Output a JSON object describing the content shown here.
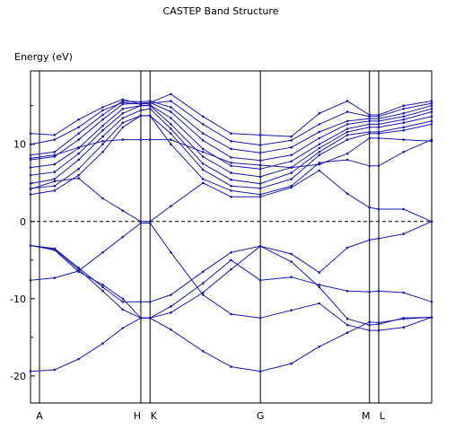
{
  "chart_data": {
    "type": "line",
    "title": "CASTEP Band Structure",
    "ylabel": "Energy (eV)",
    "xlabel": "",
    "ylim": [
      -23.5,
      19.5
    ],
    "yticks": [
      -20,
      -10,
      0,
      10
    ],
    "fermi_level": 0,
    "grid": false,
    "legend": "none",
    "colors": {
      "bands": "#1a1aa8",
      "axis": "#000000",
      "fermi": "#000000"
    },
    "kpoints": [
      {
        "label": "A",
        "x": 0.0
      },
      {
        "label": "H",
        "x": 0.275
      },
      {
        "label": "K",
        "x": 0.298
      },
      {
        "label": "G",
        "x": 0.573
      },
      {
        "label": "M",
        "x": 0.845
      },
      {
        "label": "L",
        "x": 0.868
      }
    ],
    "xrange": [
      0,
      1.0
    ],
    "series": [
      {
        "points": [
          [
            0.0,
            -19.4
          ],
          [
            0.06,
            -19.2
          ],
          [
            0.12,
            -17.8
          ],
          [
            0.18,
            -15.8
          ],
          [
            0.23,
            -13.8
          ],
          [
            0.275,
            -12.5
          ],
          [
            0.298,
            -12.5
          ],
          [
            0.35,
            -14.0
          ],
          [
            0.43,
            -16.8
          ],
          [
            0.5,
            -18.8
          ],
          [
            0.573,
            -19.4
          ],
          [
            0.65,
            -18.4
          ],
          [
            0.72,
            -16.2
          ],
          [
            0.79,
            -14.4
          ],
          [
            0.845,
            -13.0
          ],
          [
            0.868,
            -13.1
          ],
          [
            0.93,
            -12.6
          ],
          [
            1.0,
            -12.4
          ]
        ]
      },
      {
        "points": [
          [
            0.0,
            -7.6
          ],
          [
            0.06,
            -7.3
          ],
          [
            0.12,
            -6.4
          ],
          [
            0.18,
            -4.0
          ],
          [
            0.23,
            -2.0
          ],
          [
            0.275,
            -0.2
          ],
          [
            0.298,
            -0.2
          ],
          [
            0.35,
            -4.0
          ],
          [
            0.43,
            -9.5
          ],
          [
            0.5,
            -12.0
          ],
          [
            0.573,
            -12.5
          ],
          [
            0.65,
            -11.5
          ],
          [
            0.72,
            -10.6
          ],
          [
            0.79,
            -13.4
          ],
          [
            0.845,
            -14.1
          ],
          [
            0.868,
            -14.1
          ],
          [
            0.93,
            -13.7
          ],
          [
            1.0,
            -12.4
          ]
        ]
      },
      {
        "points": [
          [
            0.0,
            -3.1
          ],
          [
            0.06,
            -3.5
          ],
          [
            0.12,
            -6.0
          ],
          [
            0.18,
            -8.5
          ],
          [
            0.23,
            -10.4
          ],
          [
            0.275,
            -10.4
          ],
          [
            0.298,
            -10.4
          ],
          [
            0.35,
            -9.5
          ],
          [
            0.43,
            -6.5
          ],
          [
            0.5,
            -4.0
          ],
          [
            0.573,
            -3.2
          ],
          [
            0.65,
            -5.2
          ],
          [
            0.72,
            -8.5
          ],
          [
            0.79,
            -12.6
          ],
          [
            0.845,
            -13.4
          ],
          [
            0.868,
            -13.3
          ],
          [
            0.93,
            -12.5
          ],
          [
            1.0,
            -12.4
          ]
        ]
      },
      {
        "points": [
          [
            0.0,
            -3.1
          ],
          [
            0.06,
            -3.6
          ],
          [
            0.12,
            -6.2
          ],
          [
            0.18,
            -9.0
          ],
          [
            0.23,
            -11.4
          ],
          [
            0.275,
            -12.5
          ],
          [
            0.298,
            -12.5
          ],
          [
            0.35,
            -11.8
          ],
          [
            0.43,
            -9.2
          ],
          [
            0.5,
            -6.2
          ],
          [
            0.573,
            -3.2
          ],
          [
            0.65,
            -4.2
          ],
          [
            0.72,
            -6.6
          ],
          [
            0.79,
            -3.4
          ],
          [
            0.845,
            -2.4
          ],
          [
            0.868,
            -2.2
          ],
          [
            0.93,
            -1.6
          ],
          [
            1.0,
            0.0
          ]
        ]
      },
      {
        "points": [
          [
            0.0,
            -3.1
          ],
          [
            0.06,
            -3.7
          ],
          [
            0.12,
            -6.5
          ],
          [
            0.18,
            -8.2
          ],
          [
            0.23,
            -10.0
          ],
          [
            0.275,
            -12.5
          ],
          [
            0.298,
            -12.5
          ],
          [
            0.35,
            -11.0
          ],
          [
            0.43,
            -8.0
          ],
          [
            0.5,
            -5.0
          ],
          [
            0.573,
            -7.6
          ],
          [
            0.65,
            -7.2
          ],
          [
            0.72,
            -8.2
          ],
          [
            0.79,
            -9.0
          ],
          [
            0.845,
            -9.1
          ],
          [
            0.868,
            -9.0
          ],
          [
            0.93,
            -9.2
          ],
          [
            1.0,
            -10.4
          ]
        ]
      },
      {
        "points": [
          [
            0.0,
            4.2
          ],
          [
            0.06,
            5.2
          ],
          [
            0.12,
            5.6
          ],
          [
            0.18,
            3.0
          ],
          [
            0.23,
            1.4
          ],
          [
            0.275,
            0.0
          ],
          [
            0.298,
            0.0
          ],
          [
            0.35,
            2.0
          ],
          [
            0.43,
            5.0
          ],
          [
            0.5,
            3.2
          ],
          [
            0.573,
            3.2
          ],
          [
            0.65,
            4.4
          ],
          [
            0.72,
            6.6
          ],
          [
            0.79,
            3.6
          ],
          [
            0.845,
            1.8
          ],
          [
            0.868,
            1.6
          ],
          [
            0.93,
            1.6
          ],
          [
            1.0,
            0.0
          ]
        ]
      },
      {
        "points": [
          [
            0.0,
            3.5
          ],
          [
            0.06,
            4.0
          ],
          [
            0.12,
            6.0
          ],
          [
            0.18,
            9.0
          ],
          [
            0.23,
            12.2
          ],
          [
            0.275,
            13.7
          ],
          [
            0.298,
            13.7
          ],
          [
            0.35,
            10.0
          ],
          [
            0.43,
            5.5
          ],
          [
            0.5,
            4.0
          ],
          [
            0.573,
            3.5
          ],
          [
            0.65,
            4.6
          ],
          [
            0.72,
            7.6
          ],
          [
            0.79,
            8.0
          ],
          [
            0.845,
            7.2
          ],
          [
            0.868,
            7.2
          ],
          [
            0.93,
            9.0
          ],
          [
            1.0,
            10.6
          ]
        ]
      },
      {
        "points": [
          [
            0.0,
            4.3
          ],
          [
            0.06,
            4.6
          ],
          [
            0.12,
            6.8
          ],
          [
            0.18,
            10.0
          ],
          [
            0.23,
            12.8
          ],
          [
            0.275,
            13.7
          ],
          [
            0.298,
            13.7
          ],
          [
            0.35,
            11.4
          ],
          [
            0.43,
            6.7
          ],
          [
            0.5,
            4.6
          ],
          [
            0.573,
            4.3
          ],
          [
            0.65,
            5.5
          ],
          [
            0.72,
            8.6
          ],
          [
            0.79,
            10.6
          ],
          [
            0.845,
            11.4
          ],
          [
            0.868,
            11.4
          ],
          [
            0.93,
            11.8
          ],
          [
            1.0,
            12.6
          ]
        ]
      },
      {
        "points": [
          [
            0.0,
            4.9
          ],
          [
            0.06,
            5.5
          ],
          [
            0.12,
            8.0
          ],
          [
            0.18,
            11.0
          ],
          [
            0.23,
            13.4
          ],
          [
            0.275,
            14.4
          ],
          [
            0.298,
            14.6
          ],
          [
            0.35,
            12.0
          ],
          [
            0.43,
            7.5
          ],
          [
            0.5,
            5.4
          ],
          [
            0.573,
            4.9
          ],
          [
            0.65,
            6.3
          ],
          [
            0.72,
            9.0
          ],
          [
            0.79,
            11.2
          ],
          [
            0.845,
            11.6
          ],
          [
            0.868,
            11.6
          ],
          [
            0.93,
            12.2
          ],
          [
            1.0,
            13.0
          ]
        ]
      },
      {
        "points": [
          [
            0.0,
            6.0
          ],
          [
            0.06,
            6.4
          ],
          [
            0.12,
            8.8
          ],
          [
            0.18,
            11.8
          ],
          [
            0.23,
            14.0
          ],
          [
            0.275,
            15.0
          ],
          [
            0.298,
            15.0
          ],
          [
            0.35,
            12.6
          ],
          [
            0.43,
            8.4
          ],
          [
            0.5,
            6.3
          ],
          [
            0.573,
            5.8
          ],
          [
            0.65,
            7.0
          ],
          [
            0.72,
            9.5
          ],
          [
            0.79,
            11.6
          ],
          [
            0.845,
            12.2
          ],
          [
            0.868,
            12.2
          ],
          [
            0.93,
            12.8
          ],
          [
            1.0,
            13.6
          ]
        ]
      },
      {
        "points": [
          [
            0.0,
            7.0
          ],
          [
            0.06,
            7.4
          ],
          [
            0.12,
            9.5
          ],
          [
            0.18,
            12.4
          ],
          [
            0.23,
            14.6
          ],
          [
            0.275,
            15.0
          ],
          [
            0.298,
            15.1
          ],
          [
            0.35,
            13.4
          ],
          [
            0.43,
            9.4
          ],
          [
            0.5,
            7.2
          ],
          [
            0.573,
            6.8
          ],
          [
            0.65,
            7.8
          ],
          [
            0.72,
            10.0
          ],
          [
            0.79,
            12.0
          ],
          [
            0.845,
            12.6
          ],
          [
            0.868,
            12.6
          ],
          [
            0.93,
            13.2
          ],
          [
            1.0,
            14.2
          ]
        ]
      },
      {
        "points": [
          [
            0.0,
            8.0
          ],
          [
            0.06,
            8.4
          ],
          [
            0.12,
            10.6
          ],
          [
            0.18,
            13.2
          ],
          [
            0.23,
            15.2
          ],
          [
            0.275,
            15.3
          ],
          [
            0.298,
            15.4
          ],
          [
            0.35,
            14.2
          ],
          [
            0.43,
            10.5
          ],
          [
            0.5,
            8.3
          ],
          [
            0.573,
            7.9
          ],
          [
            0.65,
            8.6
          ],
          [
            0.72,
            10.8
          ],
          [
            0.79,
            12.6
          ],
          [
            0.845,
            13.0
          ],
          [
            0.868,
            13.0
          ],
          [
            0.93,
            13.6
          ],
          [
            1.0,
            14.6
          ]
        ]
      },
      {
        "points": [
          [
            0.0,
            8.6
          ],
          [
            0.06,
            9.0
          ],
          [
            0.12,
            11.4
          ],
          [
            0.18,
            13.8
          ],
          [
            0.23,
            15.6
          ],
          [
            0.275,
            15.5
          ],
          [
            0.298,
            15.6
          ],
          [
            0.35,
            14.8
          ],
          [
            0.43,
            11.4
          ],
          [
            0.5,
            9.4
          ],
          [
            0.573,
            8.9
          ],
          [
            0.65,
            9.6
          ],
          [
            0.72,
            11.6
          ],
          [
            0.79,
            13.0
          ],
          [
            0.845,
            13.3
          ],
          [
            0.868,
            13.3
          ],
          [
            0.93,
            14.0
          ],
          [
            1.0,
            15.0
          ]
        ]
      },
      {
        "points": [
          [
            0.0,
            10.0
          ],
          [
            0.06,
            10.6
          ],
          [
            0.12,
            12.2
          ],
          [
            0.18,
            14.4
          ],
          [
            0.23,
            15.4
          ],
          [
            0.275,
            15.2
          ],
          [
            0.298,
            15.3
          ],
          [
            0.35,
            15.6
          ],
          [
            0.43,
            12.6
          ],
          [
            0.5,
            10.4
          ],
          [
            0.573,
            9.9
          ],
          [
            0.65,
            10.5
          ],
          [
            0.72,
            12.6
          ],
          [
            0.79,
            14.2
          ],
          [
            0.845,
            13.6
          ],
          [
            0.868,
            13.6
          ],
          [
            0.93,
            14.6
          ],
          [
            1.0,
            15.3
          ]
        ]
      },
      {
        "points": [
          [
            0.0,
            11.4
          ],
          [
            0.06,
            11.2
          ],
          [
            0.12,
            13.2
          ],
          [
            0.18,
            14.8
          ],
          [
            0.23,
            15.8
          ],
          [
            0.275,
            15.2
          ],
          [
            0.298,
            15.4
          ],
          [
            0.35,
            16.5
          ],
          [
            0.43,
            13.6
          ],
          [
            0.5,
            11.4
          ],
          [
            0.573,
            11.2
          ],
          [
            0.65,
            11.0
          ],
          [
            0.72,
            14.0
          ],
          [
            0.79,
            15.6
          ],
          [
            0.845,
            13.8
          ],
          [
            0.868,
            13.8
          ],
          [
            0.93,
            15.0
          ],
          [
            1.0,
            15.6
          ]
        ]
      },
      {
        "points": [
          [
            0.0,
            8.2
          ],
          [
            0.06,
            8.6
          ],
          [
            0.12,
            9.6
          ],
          [
            0.18,
            10.4
          ],
          [
            0.23,
            10.6
          ],
          [
            0.275,
            10.6
          ],
          [
            0.298,
            10.6
          ],
          [
            0.35,
            10.6
          ],
          [
            0.43,
            9.0
          ],
          [
            0.5,
            7.6
          ],
          [
            0.573,
            7.3
          ],
          [
            0.65,
            7.0
          ],
          [
            0.72,
            7.4
          ],
          [
            0.79,
            8.8
          ],
          [
            0.845,
            10.8
          ],
          [
            0.868,
            10.8
          ],
          [
            0.93,
            10.6
          ],
          [
            1.0,
            10.4
          ]
        ]
      }
    ]
  }
}
